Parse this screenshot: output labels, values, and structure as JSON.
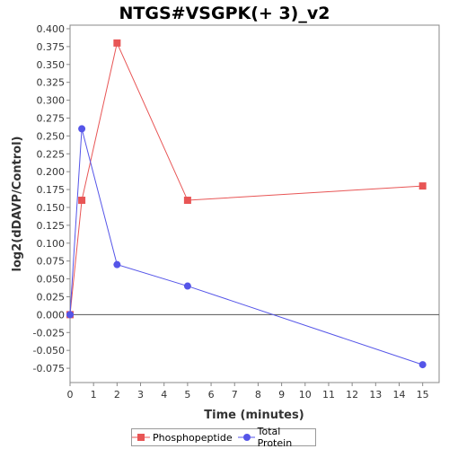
{
  "chart_data": {
    "type": "line",
    "title": "NTGS#VSGPK(+ 3)_v2",
    "xlabel": "Time (minutes)",
    "ylabel": "log2(dDAVP/Control)",
    "xlim": [
      0,
      15.7
    ],
    "ylim": [
      -0.095,
      0.405
    ],
    "xticks": [
      0,
      1,
      2,
      3,
      4,
      5,
      6,
      7,
      8,
      9,
      10,
      11,
      12,
      13,
      14,
      15
    ],
    "yticks": [
      -0.075,
      -0.05,
      -0.025,
      0.0,
      0.025,
      0.05,
      0.075,
      0.1,
      0.125,
      0.15,
      0.175,
      0.2,
      0.225,
      0.25,
      0.275,
      0.3,
      0.325,
      0.35,
      0.375,
      0.4
    ],
    "ytick_labels": [
      "-0.075",
      "-0.050",
      "-0.025",
      "0.000",
      "0.025",
      "0.050",
      "0.075",
      "0.100",
      "0.125",
      "0.150",
      "0.175",
      "0.200",
      "0.225",
      "0.250",
      "0.275",
      "0.300",
      "0.325",
      "0.350",
      "0.375",
      "0.400"
    ],
    "zero_line": true,
    "grid": false,
    "legend_position": "bottom",
    "series": [
      {
        "name": "Phosphopeptide",
        "color": "#e85555",
        "marker": "square",
        "x": [
          0,
          0.5,
          2,
          5,
          15
        ],
        "y": [
          0.0,
          0.16,
          0.38,
          0.16,
          0.18
        ]
      },
      {
        "name": "Total Protein",
        "color": "#5555e8",
        "marker": "circle",
        "x": [
          0,
          0.5,
          2,
          5,
          15
        ],
        "y": [
          0.0,
          0.26,
          0.07,
          0.04,
          -0.07
        ]
      }
    ]
  }
}
